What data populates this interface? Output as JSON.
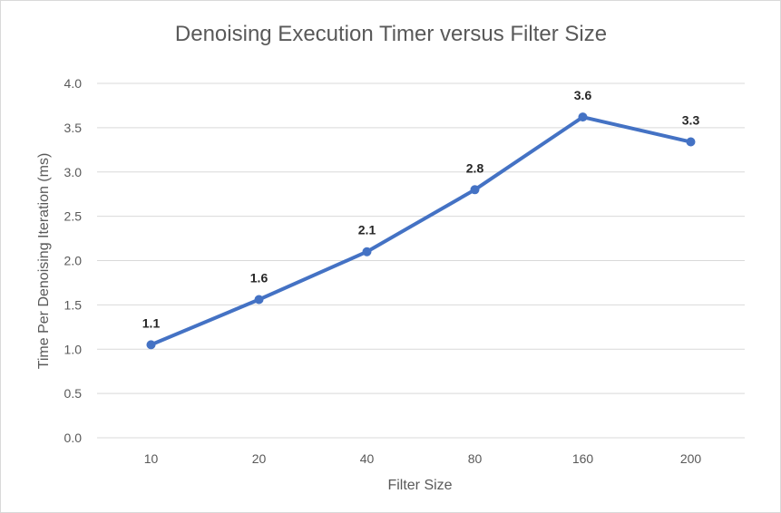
{
  "chart_data": {
    "type": "line",
    "title": "Denoising Execution Timer versus Filter Size",
    "xlabel": "Filter Size",
    "ylabel": "Time Per Denoising Iteration (ms)",
    "categories": [
      "10",
      "20",
      "40",
      "80",
      "160",
      "200"
    ],
    "series": [
      {
        "values": [
          1.05,
          1.56,
          2.1,
          2.8,
          3.62,
          3.34
        ],
        "labels": [
          "1.1",
          "1.6",
          "2.1",
          "2.8",
          "3.6",
          "3.3"
        ],
        "color": "#4472c4"
      }
    ],
    "ylim": [
      0,
      4
    ],
    "yticks": [
      "0.0",
      "0.5",
      "1.0",
      "1.5",
      "2.0",
      "2.5",
      "3.0",
      "3.5",
      "4.0"
    ],
    "grid": true,
    "legend": "none"
  }
}
